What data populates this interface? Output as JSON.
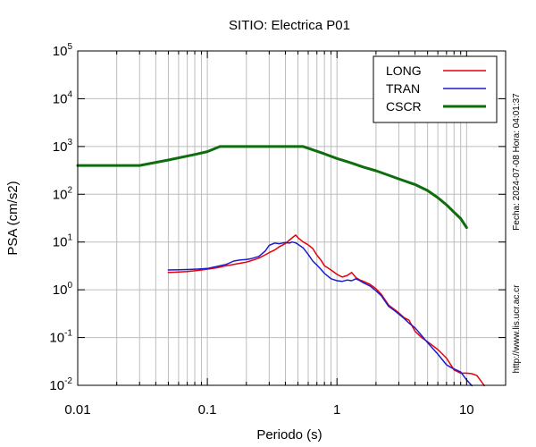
{
  "chart_data": {
    "type": "line",
    "title": "SITIO: Electrica P01",
    "xlabel": "Periodo (s)",
    "ylabel": "PSA (cm/s2)",
    "xscale": "log",
    "yscale": "log",
    "xlim": [
      0.01,
      20
    ],
    "ylim": [
      0.01,
      100000
    ],
    "grid": true,
    "legend_position": "top-right",
    "x_ticks": [
      {
        "value": 0.01,
        "label": "0.01"
      },
      {
        "value": 0.1,
        "label": "0.1"
      },
      {
        "value": 1,
        "label": "1"
      },
      {
        "value": 10,
        "label": "10"
      }
    ],
    "y_ticks": [
      {
        "value": 0.01,
        "base": "10",
        "exp": "-2"
      },
      {
        "value": 0.1,
        "base": "10",
        "exp": "-1"
      },
      {
        "value": 1,
        "base": "10",
        "exp": "0"
      },
      {
        "value": 10,
        "base": "10",
        "exp": "1"
      },
      {
        "value": 100,
        "base": "10",
        "exp": "2"
      },
      {
        "value": 1000,
        "base": "10",
        "exp": "3"
      },
      {
        "value": 10000,
        "base": "10",
        "exp": "4"
      },
      {
        "value": 100000,
        "base": "10",
        "exp": "5"
      }
    ],
    "series": [
      {
        "name": "LONG",
        "color": "#e8000b",
        "width": 1.5,
        "points": [
          [
            0.05,
            2.3
          ],
          [
            0.06,
            2.35
          ],
          [
            0.07,
            2.4
          ],
          [
            0.08,
            2.5
          ],
          [
            0.09,
            2.6
          ],
          [
            0.1,
            2.7
          ],
          [
            0.12,
            2.9
          ],
          [
            0.14,
            3.2
          ],
          [
            0.16,
            3.4
          ],
          [
            0.18,
            3.6
          ],
          [
            0.2,
            3.8
          ],
          [
            0.22,
            4.1
          ],
          [
            0.25,
            4.6
          ],
          [
            0.28,
            5.4
          ],
          [
            0.3,
            6.0
          ],
          [
            0.33,
            6.8
          ],
          [
            0.36,
            8.0
          ],
          [
            0.4,
            9.3
          ],
          [
            0.43,
            11.0
          ],
          [
            0.46,
            12.8
          ],
          [
            0.48,
            14.0
          ],
          [
            0.5,
            12.3
          ],
          [
            0.55,
            10.0
          ],
          [
            0.6,
            8.7
          ],
          [
            0.65,
            7.3
          ],
          [
            0.7,
            5.3
          ],
          [
            0.75,
            4.2
          ],
          [
            0.8,
            3.2
          ],
          [
            0.9,
            2.6
          ],
          [
            1.0,
            2.1
          ],
          [
            1.1,
            1.85
          ],
          [
            1.2,
            2.0
          ],
          [
            1.3,
            2.3
          ],
          [
            1.4,
            1.8
          ],
          [
            1.5,
            1.6
          ],
          [
            1.6,
            1.5
          ],
          [
            1.8,
            1.3
          ],
          [
            2.0,
            1.05
          ],
          [
            2.2,
            0.8
          ],
          [
            2.5,
            0.48
          ],
          [
            2.8,
            0.38
          ],
          [
            3.0,
            0.33
          ],
          [
            3.3,
            0.26
          ],
          [
            3.6,
            0.23
          ],
          [
            4.0,
            0.135
          ],
          [
            4.5,
            0.1
          ],
          [
            5.0,
            0.082
          ],
          [
            6.0,
            0.056
          ],
          [
            7.0,
            0.037
          ],
          [
            8.0,
            0.021
          ],
          [
            9.0,
            0.018
          ],
          [
            10.0,
            0.018
          ],
          [
            11.0,
            0.0175
          ],
          [
            12.0,
            0.016
          ],
          [
            13.0,
            0.012
          ],
          [
            13.7,
            0.0098
          ]
        ]
      },
      {
        "name": "TRAN",
        "color": "#1c1ccf",
        "width": 1.5,
        "points": [
          [
            0.05,
            2.6
          ],
          [
            0.06,
            2.62
          ],
          [
            0.07,
            2.65
          ],
          [
            0.08,
            2.7
          ],
          [
            0.09,
            2.75
          ],
          [
            0.1,
            2.8
          ],
          [
            0.12,
            3.1
          ],
          [
            0.14,
            3.4
          ],
          [
            0.16,
            4.0
          ],
          [
            0.18,
            4.2
          ],
          [
            0.2,
            4.3
          ],
          [
            0.22,
            4.5
          ],
          [
            0.25,
            5.0
          ],
          [
            0.28,
            6.5
          ],
          [
            0.3,
            8.5
          ],
          [
            0.33,
            9.5
          ],
          [
            0.36,
            9.2
          ],
          [
            0.4,
            9.8
          ],
          [
            0.43,
            9.5
          ],
          [
            0.45,
            10.0
          ],
          [
            0.48,
            9.6
          ],
          [
            0.5,
            9.0
          ],
          [
            0.55,
            7.5
          ],
          [
            0.6,
            5.5
          ],
          [
            0.65,
            4.0
          ],
          [
            0.7,
            3.3
          ],
          [
            0.75,
            2.7
          ],
          [
            0.8,
            2.2
          ],
          [
            0.9,
            1.7
          ],
          [
            1.0,
            1.55
          ],
          [
            1.1,
            1.5
          ],
          [
            1.2,
            1.6
          ],
          [
            1.3,
            1.55
          ],
          [
            1.4,
            1.7
          ],
          [
            1.5,
            1.55
          ],
          [
            1.6,
            1.4
          ],
          [
            1.8,
            1.2
          ],
          [
            2.0,
            0.95
          ],
          [
            2.2,
            0.75
          ],
          [
            2.5,
            0.45
          ],
          [
            2.8,
            0.36
          ],
          [
            3.0,
            0.31
          ],
          [
            3.3,
            0.25
          ],
          [
            3.6,
            0.2
          ],
          [
            4.0,
            0.16
          ],
          [
            4.5,
            0.11
          ],
          [
            5.0,
            0.078
          ],
          [
            6.0,
            0.045
          ],
          [
            7.0,
            0.027
          ],
          [
            7.5,
            0.024
          ],
          [
            8.0,
            0.022
          ],
          [
            9.0,
            0.019
          ],
          [
            10.0,
            0.013
          ],
          [
            11.0,
            0.0098
          ]
        ]
      },
      {
        "name": "CSCR",
        "color": "#0e6e0e",
        "width": 3,
        "points": [
          [
            0.01,
            400
          ],
          [
            0.03,
            400
          ],
          [
            0.05,
            520
          ],
          [
            0.08,
            680
          ],
          [
            0.1,
            780
          ],
          [
            0.125,
            1000
          ],
          [
            0.2,
            1000
          ],
          [
            0.35,
            1000
          ],
          [
            0.55,
            1000
          ],
          [
            0.8,
            700
          ],
          [
            1.0,
            560
          ],
          [
            1.3,
            450
          ],
          [
            1.6,
            370
          ],
          [
            2.0,
            310
          ],
          [
            2.5,
            250
          ],
          [
            3.0,
            210
          ],
          [
            4.0,
            160
          ],
          [
            5.0,
            120
          ],
          [
            6.0,
            85
          ],
          [
            7.0,
            60
          ],
          [
            8.0,
            42
          ],
          [
            9.0,
            31
          ],
          [
            10.0,
            20
          ]
        ]
      }
    ],
    "side_notes": {
      "date_time": "Fecha: 2024-07-08 Hora: 04:01:37",
      "url": "http://www.lis.ucr.ac.cr"
    }
  }
}
